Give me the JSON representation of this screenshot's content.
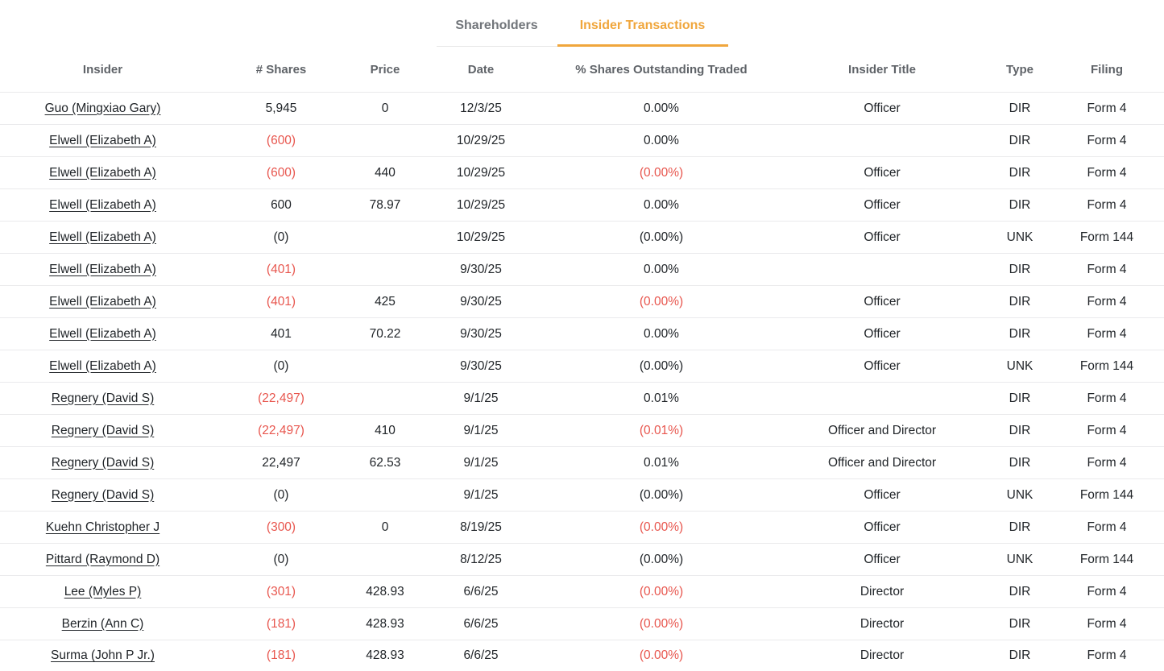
{
  "colors": {
    "accent_orange": "#F0A63C",
    "negative_red": "#E8564E",
    "text_dark": "#212529",
    "header_gray": "#5F6368",
    "divider": "#EAEAEC"
  },
  "tabs": [
    {
      "label": "Shareholders",
      "active": false
    },
    {
      "label": "Insider Transactions",
      "active": true
    }
  ],
  "table": {
    "columns": [
      "Insider",
      "# Shares",
      "Price",
      "Date",
      "% Shares Outstanding Traded",
      "Insider Title",
      "Type",
      "Filing"
    ],
    "rows": [
      {
        "insider": "Guo (Mingxiao Gary)",
        "shares": "5,945",
        "shares_negative": false,
        "price": "0",
        "date": "12/3/25",
        "pct": "0.00%",
        "pct_negative": false,
        "title": "Officer",
        "type": "DIR",
        "filing": "Form 4"
      },
      {
        "insider": "Elwell (Elizabeth A)",
        "shares": "(600)",
        "shares_negative": true,
        "price": "",
        "date": "10/29/25",
        "pct": "0.00%",
        "pct_negative": false,
        "title": "",
        "type": "DIR",
        "filing": "Form 4"
      },
      {
        "insider": "Elwell (Elizabeth A)",
        "shares": "(600)",
        "shares_negative": true,
        "price": "440",
        "date": "10/29/25",
        "pct": "(0.00%)",
        "pct_negative": true,
        "title": "Officer",
        "type": "DIR",
        "filing": "Form 4"
      },
      {
        "insider": "Elwell (Elizabeth A)",
        "shares": "600",
        "shares_negative": false,
        "price": "78.97",
        "date": "10/29/25",
        "pct": "0.00%",
        "pct_negative": false,
        "title": "Officer",
        "type": "DIR",
        "filing": "Form 4"
      },
      {
        "insider": "Elwell (Elizabeth A)",
        "shares": "(0)",
        "shares_negative": false,
        "price": "",
        "date": "10/29/25",
        "pct": "(0.00%)",
        "pct_negative": false,
        "title": "Officer",
        "type": "UNK",
        "filing": "Form 144"
      },
      {
        "insider": "Elwell (Elizabeth A)",
        "shares": "(401)",
        "shares_negative": true,
        "price": "",
        "date": "9/30/25",
        "pct": "0.00%",
        "pct_negative": false,
        "title": "",
        "type": "DIR",
        "filing": "Form 4"
      },
      {
        "insider": "Elwell (Elizabeth A)",
        "shares": "(401)",
        "shares_negative": true,
        "price": "425",
        "date": "9/30/25",
        "pct": "(0.00%)",
        "pct_negative": true,
        "title": "Officer",
        "type": "DIR",
        "filing": "Form 4"
      },
      {
        "insider": "Elwell (Elizabeth A)",
        "shares": "401",
        "shares_negative": false,
        "price": "70.22",
        "date": "9/30/25",
        "pct": "0.00%",
        "pct_negative": false,
        "title": "Officer",
        "type": "DIR",
        "filing": "Form 4"
      },
      {
        "insider": "Elwell (Elizabeth A)",
        "shares": "(0)",
        "shares_negative": false,
        "price": "",
        "date": "9/30/25",
        "pct": "(0.00%)",
        "pct_negative": false,
        "title": "Officer",
        "type": "UNK",
        "filing": "Form 144"
      },
      {
        "insider": "Regnery (David S)",
        "shares": "(22,497)",
        "shares_negative": true,
        "price": "",
        "date": "9/1/25",
        "pct": "0.01%",
        "pct_negative": false,
        "title": "",
        "type": "DIR",
        "filing": "Form 4"
      },
      {
        "insider": "Regnery (David S)",
        "shares": "(22,497)",
        "shares_negative": true,
        "price": "410",
        "date": "9/1/25",
        "pct": "(0.01%)",
        "pct_negative": true,
        "title": "Officer and Director",
        "type": "DIR",
        "filing": "Form 4"
      },
      {
        "insider": "Regnery (David S)",
        "shares": "22,497",
        "shares_negative": false,
        "price": "62.53",
        "date": "9/1/25",
        "pct": "0.01%",
        "pct_negative": false,
        "title": "Officer and Director",
        "type": "DIR",
        "filing": "Form 4"
      },
      {
        "insider": "Regnery (David S)",
        "shares": "(0)",
        "shares_negative": false,
        "price": "",
        "date": "9/1/25",
        "pct": "(0.00%)",
        "pct_negative": false,
        "title": "Officer",
        "type": "UNK",
        "filing": "Form 144"
      },
      {
        "insider": "Kuehn Christopher J",
        "shares": "(300)",
        "shares_negative": true,
        "price": "0",
        "date": "8/19/25",
        "pct": "(0.00%)",
        "pct_negative": true,
        "title": "Officer",
        "type": "DIR",
        "filing": "Form 4"
      },
      {
        "insider": "Pittard (Raymond D)",
        "shares": "(0)",
        "shares_negative": false,
        "price": "",
        "date": "8/12/25",
        "pct": "(0.00%)",
        "pct_negative": false,
        "title": "Officer",
        "type": "UNK",
        "filing": "Form 144"
      },
      {
        "insider": "Lee (Myles P)",
        "shares": "(301)",
        "shares_negative": true,
        "price": "428.93",
        "date": "6/6/25",
        "pct": "(0.00%)",
        "pct_negative": true,
        "title": "Director",
        "type": "DIR",
        "filing": "Form 4"
      },
      {
        "insider": "Berzin (Ann C)",
        "shares": "(181)",
        "shares_negative": true,
        "price": "428.93",
        "date": "6/6/25",
        "pct": "(0.00%)",
        "pct_negative": true,
        "title": "Director",
        "type": "DIR",
        "filing": "Form 4"
      },
      {
        "insider": "Surma (John P Jr.)",
        "shares": "(181)",
        "shares_negative": true,
        "price": "428.93",
        "date": "6/6/25",
        "pct": "(0.00%)",
        "pct_negative": true,
        "title": "Director",
        "type": "DIR",
        "filing": "Form 4"
      }
    ]
  }
}
